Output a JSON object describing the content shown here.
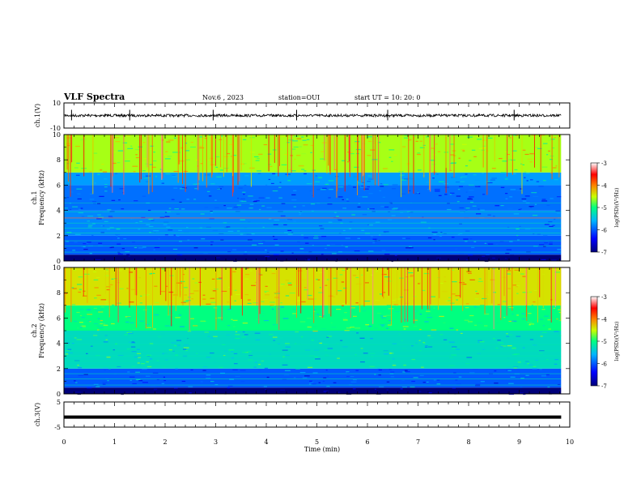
{
  "header": {
    "title": "VLF Spectra",
    "date": "Nov.6  , 2023",
    "station": "station=OUI",
    "start": "start  UT  =   10: 20: 0"
  },
  "chart_data": [
    {
      "type": "line",
      "name": "ch1-waveform",
      "ylabel": "ch.1(V)",
      "ylim": [
        -10,
        10
      ],
      "ytick_labels": [
        "10",
        "-10"
      ],
      "x_range_min": [
        0,
        9.83
      ],
      "baseline": 0,
      "spike_times": [
        0.15,
        1.3,
        2.95,
        4.6,
        6.4,
        8.9
      ]
    },
    {
      "type": "heatmap",
      "name": "ch1-spectrogram",
      "ylabel": "ch.1\nFrequency (kHz)",
      "ylim": [
        0,
        10
      ],
      "ytick_labels": [
        "0",
        "2",
        "4",
        "6",
        "8",
        "10"
      ],
      "colorbar_label": "log(PSD)(V²/Hz)",
      "colorbar_range": [
        -7,
        -3
      ],
      "colorbar_ticks": [
        "-3",
        "-4",
        "-5",
        "-6",
        "-7"
      ],
      "band_levels": [
        {
          "f_range": [
            0,
            0.5
          ],
          "level": -7.0
        },
        {
          "f_range": [
            0.5,
            2.0
          ],
          "level": -6.0
        },
        {
          "f_range": [
            2.0,
            4.0
          ],
          "level": -5.8
        },
        {
          "f_range": [
            4.0,
            6.0
          ],
          "level": -5.9
        },
        {
          "f_range": [
            6.0,
            7.0
          ],
          "level": -5.7
        },
        {
          "f_range": [
            7.0,
            10.0
          ],
          "level": -4.6
        }
      ]
    },
    {
      "type": "heatmap",
      "name": "ch2-spectrogram",
      "ylabel": "ch.2\nFrequency (kHz)",
      "ylim": [
        0,
        10
      ],
      "ytick_labels": [
        "0",
        "2",
        "4",
        "6",
        "8",
        "10"
      ],
      "colorbar_label": "log(PSD)(V²/Hz)",
      "colorbar_range": [
        -7,
        -3
      ],
      "colorbar_ticks": [
        "-3",
        "-4",
        "-5",
        "-6",
        "-7"
      ],
      "band_levels": [
        {
          "f_range": [
            0,
            0.5
          ],
          "level": -7.0
        },
        {
          "f_range": [
            0.5,
            2.0
          ],
          "level": -6.0
        },
        {
          "f_range": [
            2.0,
            5.0
          ],
          "level": -5.3
        },
        {
          "f_range": [
            5.0,
            7.0
          ],
          "level": -5.0
        },
        {
          "f_range": [
            7.0,
            10.0
          ],
          "level": -4.4
        }
      ]
    },
    {
      "type": "line",
      "name": "ch3-waveform",
      "ylabel": "ch.3(V)",
      "ylim": [
        -5,
        5
      ],
      "ytick_labels": [
        "5",
        "-5"
      ],
      "x_range_min": [
        0,
        9.83
      ],
      "value": -1.0
    }
  ],
  "xaxis": {
    "label": "Time  (min)",
    "range": [
      0,
      10
    ],
    "tick_labels": [
      "0",
      "1",
      "2",
      "3",
      "4",
      "5",
      "6",
      "7",
      "8",
      "9",
      "10"
    ]
  }
}
